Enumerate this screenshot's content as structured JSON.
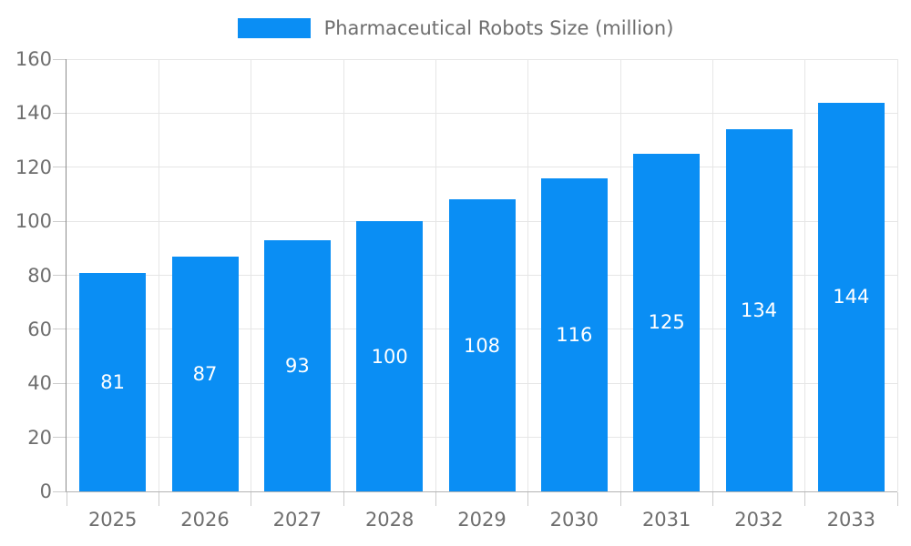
{
  "legend": {
    "label": "Pharmaceutical Robots Size (million)"
  },
  "colors": {
    "bar": "#0a8ef4",
    "bar_label": "#ffffff",
    "grid": "#e6e6e6",
    "axis_y_line": "#8c8c8c",
    "axis_x_line": "#b3b3b3",
    "tick": "#cccccc",
    "axis_text": "#6e6e6e"
  },
  "chart_data": {
    "type": "bar",
    "title": "Pharmaceutical Robots Size (million)",
    "categories": [
      "2025",
      "2026",
      "2027",
      "2028",
      "2029",
      "2030",
      "2031",
      "2032",
      "2033"
    ],
    "values": [
      81,
      87,
      93,
      100,
      108,
      116,
      125,
      134,
      144
    ],
    "xlabel": "",
    "ylabel": "",
    "ylim": [
      0,
      160
    ],
    "yticks": [
      0,
      20,
      40,
      60,
      80,
      100,
      120,
      140,
      160
    ],
    "grid": true,
    "legend_position": "top",
    "value_labels": "inside-center"
  }
}
